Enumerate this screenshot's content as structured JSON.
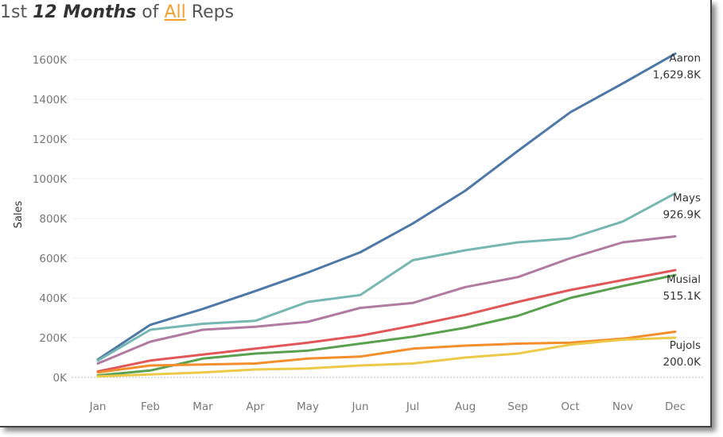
{
  "title": {
    "prefix": "1st ",
    "emphasis": "12 Months",
    "middle": " of ",
    "link": "All",
    "suffix": " Reps"
  },
  "chart_data": {
    "type": "line",
    "xlabel": "",
    "ylabel": "Sales",
    "ylim": [
      0,
      1700000
    ],
    "yticks": [
      0,
      200000,
      400000,
      600000,
      800000,
      1000000,
      1200000,
      1400000,
      1600000
    ],
    "ytick_labels": [
      "0K",
      "200K",
      "400K",
      "600K",
      "800K",
      "1000K",
      "1200K",
      "1400K",
      "1600K"
    ],
    "categories": [
      "Jan",
      "Feb",
      "Mar",
      "Apr",
      "May",
      "Jun",
      "Jul",
      "Aug",
      "Sep",
      "Oct",
      "Nov",
      "Dec"
    ],
    "grid": "horizontal",
    "series": [
      {
        "name": "Aaron",
        "color": "#4e79a7",
        "end_label": "1,629.8K",
        "values": [
          90000,
          265000,
          345000,
          435000,
          528000,
          630000,
          775000,
          940000,
          1140000,
          1335000,
          1480000,
          1629800
        ]
      },
      {
        "name": "Mays",
        "color": "#76b7b2",
        "end_label": "926.9K",
        "values": [
          85000,
          240000,
          270000,
          285000,
          380000,
          415000,
          590000,
          640000,
          680000,
          700000,
          785000,
          926900
        ]
      },
      {
        "name": "",
        "color": "#b07aa1",
        "end_label": "",
        "values": [
          70000,
          180000,
          240000,
          255000,
          280000,
          350000,
          375000,
          455000,
          505000,
          600000,
          680000,
          710000
        ]
      },
      {
        "name": "",
        "color": "#e15759",
        "end_label": "",
        "values": [
          30000,
          85000,
          115000,
          145000,
          175000,
          210000,
          260000,
          315000,
          380000,
          440000,
          490000,
          540000
        ]
      },
      {
        "name": "Musial",
        "color": "#59a14f",
        "end_label": "515.1K",
        "values": [
          10000,
          35000,
          95000,
          120000,
          135000,
          170000,
          205000,
          250000,
          310000,
          400000,
          460000,
          515100
        ]
      },
      {
        "name": "",
        "color": "#f28e2b",
        "end_label": "",
        "values": [
          25000,
          60000,
          65000,
          70000,
          95000,
          105000,
          145000,
          160000,
          170000,
          175000,
          195000,
          230000
        ]
      },
      {
        "name": "Pujols",
        "color": "#edc948",
        "end_label": "200.0K",
        "values": [
          5000,
          15000,
          25000,
          40000,
          45000,
          60000,
          70000,
          100000,
          120000,
          165000,
          190000,
          200000
        ]
      }
    ]
  }
}
